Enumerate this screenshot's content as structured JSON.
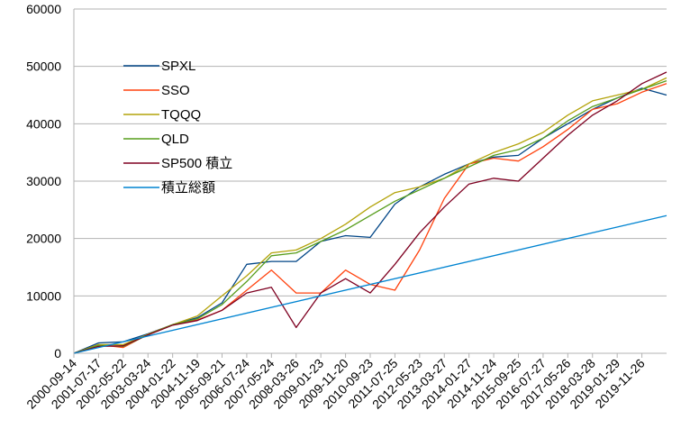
{
  "chart_data": {
    "type": "line",
    "title": "",
    "xlabel": "",
    "ylabel": "",
    "ylim": [
      0,
      60000
    ],
    "yticks": [
      0,
      10000,
      20000,
      30000,
      40000,
      50000,
      60000
    ],
    "x_tick_labels": [
      "2000-09-14",
      "2001-07-17",
      "2002-05-22",
      "2003-03-24",
      "2004-01-22",
      "2004-11-19",
      "2005-09-21",
      "2006-07-24",
      "2007-05-24",
      "2008-03-26",
      "2009-01-23",
      "2009-11-20",
      "2010-09-23",
      "2011-07-25",
      "2012-05-23",
      "2013-03-27",
      "2014-01-27",
      "2014-11-24",
      "2015-09-25",
      "2016-07-27",
      "2017-05-26",
      "2018-03-28",
      "2019-01-29",
      "2019-11-26"
    ],
    "grid": "horizontal",
    "legend_position": "upper-left inside",
    "series": [
      {
        "name": "SPXL",
        "color": "#004586",
        "x": [
          0,
          1,
          2,
          3,
          4,
          5,
          6,
          7,
          8,
          9,
          10,
          11,
          12,
          13,
          14,
          15,
          16,
          17,
          18,
          19,
          20,
          21,
          22,
          23,
          24
        ],
        "values": [
          0,
          1800,
          2000,
          3400,
          5000,
          6200,
          8800,
          15500,
          16000,
          16000,
          19500,
          20500,
          20200,
          26000,
          29000,
          31200,
          33000,
          34200,
          34500,
          37500,
          40000,
          42500,
          44500,
          46200,
          45000
        ]
      },
      {
        "name": "SSO",
        "color": "#ff420e",
        "x": [
          0,
          1,
          2,
          3,
          4,
          5,
          6,
          7,
          8,
          9,
          10,
          11,
          12,
          13,
          14,
          15,
          16,
          17,
          18,
          19,
          20,
          21,
          22,
          23,
          24
        ],
        "values": [
          0,
          1500,
          1000,
          3300,
          5000,
          5800,
          7500,
          11000,
          14500,
          10500,
          10500,
          14500,
          12000,
          11000,
          18000,
          27000,
          33000,
          34000,
          33500,
          36000,
          39000,
          42500,
          43500,
          45500,
          47000
        ]
      },
      {
        "name": "TQQQ",
        "color": "#b3a30a",
        "x": [
          0,
          1,
          2,
          3,
          4,
          5,
          6,
          7,
          8,
          9,
          10,
          11,
          12,
          13,
          14,
          15,
          16,
          17,
          18,
          19,
          20,
          21,
          22,
          23,
          24
        ],
        "values": [
          0,
          1500,
          1500,
          3300,
          5000,
          6500,
          10000,
          13500,
          17500,
          18000,
          20000,
          22500,
          25500,
          28000,
          29000,
          30500,
          33000,
          35000,
          36500,
          38500,
          41500,
          44000,
          45000,
          46000,
          48000
        ]
      },
      {
        "name": "QLD",
        "color": "#579d1c",
        "x": [
          0,
          1,
          2,
          3,
          4,
          5,
          6,
          7,
          8,
          9,
          10,
          11,
          12,
          13,
          14,
          15,
          16,
          17,
          18,
          19,
          20,
          21,
          22,
          23,
          24
        ],
        "values": [
          0,
          1400,
          1200,
          3200,
          5000,
          6000,
          8500,
          12500,
          17000,
          17500,
          19500,
          21500,
          24000,
          26500,
          28500,
          30500,
          32500,
          34500,
          35500,
          37500,
          40500,
          43000,
          44500,
          46000,
          47500
        ]
      },
      {
        "name": "SP500 積立",
        "color": "#7e0021",
        "x": [
          0,
          1,
          2,
          3,
          4,
          5,
          6,
          7,
          8,
          9,
          10,
          11,
          12,
          13,
          14,
          15,
          16,
          17,
          18,
          19,
          20,
          21,
          22,
          23,
          24
        ],
        "values": [
          0,
          1200,
          1300,
          3200,
          4900,
          5700,
          7500,
          10500,
          11500,
          4500,
          10500,
          13000,
          10500,
          15500,
          21000,
          25500,
          29500,
          30500,
          30000,
          34000,
          38000,
          41500,
          44000,
          47000,
          49000
        ]
      },
      {
        "name": "積立総額",
        "color": "#0084d1",
        "x": [
          0,
          24
        ],
        "values": [
          0,
          24000
        ]
      }
    ]
  }
}
